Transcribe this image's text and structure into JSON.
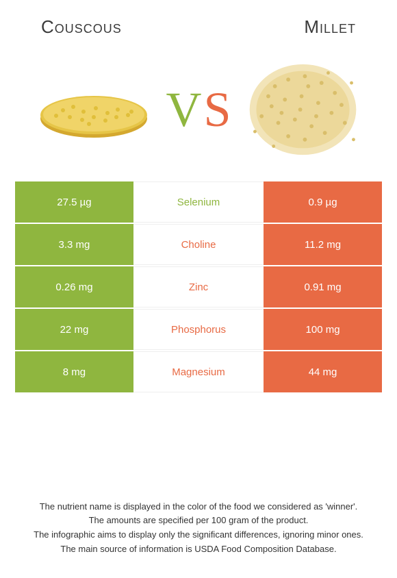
{
  "colors": {
    "left": "#8fb63f",
    "right": "#e86a44",
    "vs_v": "#8fb63f",
    "vs_s": "#e86a44"
  },
  "header": {
    "left_title": "Couscous",
    "right_title": "Millet"
  },
  "vs": {
    "v": "V",
    "s": "S"
  },
  "rows": [
    {
      "left": "27.5 µg",
      "label": "Selenium",
      "right": "0.9 µg",
      "winner": "left"
    },
    {
      "left": "3.3 mg",
      "label": "Choline",
      "right": "11.2 mg",
      "winner": "right"
    },
    {
      "left": "0.26 mg",
      "label": "Zinc",
      "right": "0.91 mg",
      "winner": "right"
    },
    {
      "left": "22 mg",
      "label": "Phosphorus",
      "right": "100 mg",
      "winner": "right"
    },
    {
      "left": "8 mg",
      "label": "Magnesium",
      "right": "44 mg",
      "winner": "right"
    }
  ],
  "footer": {
    "line1": "The nutrient name is displayed in the color of the food we considered as 'winner'.",
    "line2": "The amounts are specified per 100 gram of the product.",
    "line3": "The infographic aims to display only the significant differences, ignoring minor ones.",
    "line4": "The main source of information is USDA Food Composition Database."
  }
}
